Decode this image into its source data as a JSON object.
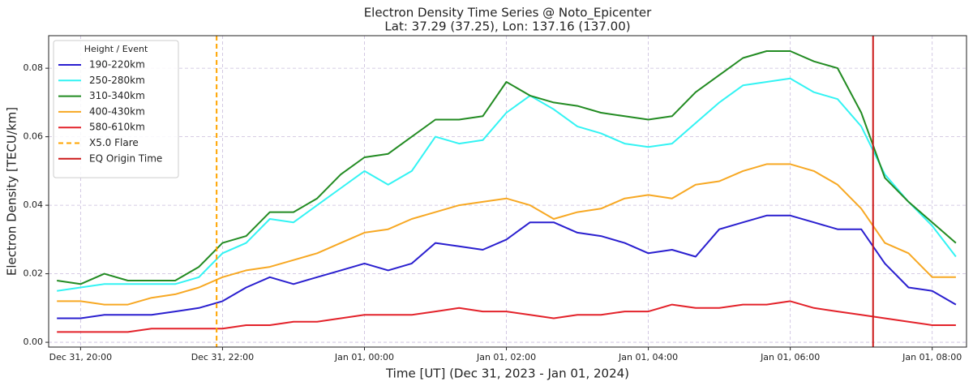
{
  "chart_data": {
    "type": "line",
    "title": "Electron Density Time Series @ Noto_Epicenter",
    "subtitle": "Lat: 37.29 (37.25), Lon: 137.16 (137.00)",
    "x_label": "Time [UT] (Dec 31, 2023 - Jan 01, 2024)",
    "y_label": "Electron Density [TECU/km]",
    "legend_title": "Height / Event",
    "legend_position": "upper left",
    "grid": true,
    "x": [
      "2023-12-31T19:40",
      "2023-12-31T20:00",
      "2023-12-31T20:20",
      "2023-12-31T20:40",
      "2023-12-31T21:00",
      "2023-12-31T21:20",
      "2023-12-31T21:40",
      "2023-12-31T22:00",
      "2023-12-31T22:20",
      "2023-12-31T22:40",
      "2023-12-31T23:00",
      "2023-12-31T23:20",
      "2023-12-31T23:40",
      "2024-01-01T00:00",
      "2024-01-01T00:20",
      "2024-01-01T00:40",
      "2024-01-01T01:00",
      "2024-01-01T01:20",
      "2024-01-01T01:40",
      "2024-01-01T02:00",
      "2024-01-01T02:20",
      "2024-01-01T02:40",
      "2024-01-01T03:00",
      "2024-01-01T03:20",
      "2024-01-01T03:40",
      "2024-01-01T04:00",
      "2024-01-01T04:20",
      "2024-01-01T04:40",
      "2024-01-01T05:00",
      "2024-01-01T05:20",
      "2024-01-01T05:40",
      "2024-01-01T06:00",
      "2024-01-01T06:20",
      "2024-01-01T06:40",
      "2024-01-01T07:00",
      "2024-01-01T07:20",
      "2024-01-01T07:40",
      "2024-01-01T08:00",
      "2024-01-01T08:20"
    ],
    "series": [
      {
        "name": "190-220km",
        "color": "#2a1fcf",
        "values": [
          0.007,
          0.007,
          0.008,
          0.008,
          0.008,
          0.009,
          0.01,
          0.012,
          0.016,
          0.019,
          0.017,
          0.019,
          0.021,
          0.023,
          0.021,
          0.023,
          0.029,
          0.028,
          0.027,
          0.03,
          0.035,
          0.035,
          0.032,
          0.031,
          0.029,
          0.026,
          0.027,
          0.025,
          0.033,
          0.035,
          0.037,
          0.037,
          0.035,
          0.033,
          0.033,
          0.023,
          0.016,
          0.015,
          0.011
        ]
      },
      {
        "name": "250-280km",
        "color": "#33f3f3",
        "values": [
          0.015,
          0.016,
          0.017,
          0.017,
          0.017,
          0.017,
          0.019,
          0.026,
          0.029,
          0.036,
          0.035,
          0.04,
          0.045,
          0.05,
          0.046,
          0.05,
          0.06,
          0.058,
          0.059,
          0.067,
          0.072,
          0.068,
          0.063,
          0.061,
          0.058,
          0.057,
          0.058,
          0.064,
          0.07,
          0.075,
          0.076,
          0.077,
          0.073,
          0.071,
          0.063,
          0.049,
          0.041,
          0.034,
          0.025
        ]
      },
      {
        "name": "310-340km",
        "color": "#228b22",
        "values": [
          0.018,
          0.017,
          0.02,
          0.018,
          0.018,
          0.018,
          0.022,
          0.029,
          0.031,
          0.038,
          0.038,
          0.042,
          0.049,
          0.054,
          0.055,
          0.06,
          0.065,
          0.065,
          0.066,
          0.076,
          0.072,
          0.07,
          0.069,
          0.067,
          0.066,
          0.065,
          0.066,
          0.073,
          0.078,
          0.083,
          0.085,
          0.085,
          0.082,
          0.08,
          0.067,
          0.048,
          0.041,
          0.035,
          0.029
        ]
      },
      {
        "name": "400-430km",
        "color": "#f7a823",
        "values": [
          0.012,
          0.012,
          0.011,
          0.011,
          0.013,
          0.014,
          0.016,
          0.019,
          0.021,
          0.022,
          0.024,
          0.026,
          0.029,
          0.032,
          0.033,
          0.036,
          0.038,
          0.04,
          0.041,
          0.042,
          0.04,
          0.036,
          0.038,
          0.039,
          0.042,
          0.043,
          0.042,
          0.046,
          0.047,
          0.05,
          0.052,
          0.052,
          0.05,
          0.046,
          0.039,
          0.029,
          0.026,
          0.019,
          0.019
        ]
      },
      {
        "name": "580-610km",
        "color": "#e3222a",
        "values": [
          0.003,
          0.003,
          0.003,
          0.003,
          0.004,
          0.004,
          0.004,
          0.004,
          0.005,
          0.005,
          0.006,
          0.006,
          0.007,
          0.008,
          0.008,
          0.008,
          0.009,
          0.01,
          0.009,
          0.009,
          0.008,
          0.007,
          0.008,
          0.008,
          0.009,
          0.009,
          0.011,
          0.01,
          0.01,
          0.011,
          0.011,
          0.012,
          0.01,
          0.009,
          0.008,
          0.007,
          0.006,
          0.005,
          0.005
        ]
      }
    ],
    "events": [
      {
        "name": "X5.0 Flare",
        "x": "2023-12-31T21:55",
        "color": "#ffa500",
        "style": "dashed"
      },
      {
        "name": "EQ Origin Time",
        "x": "2024-01-01T07:10",
        "color": "#cc1a1a",
        "style": "solid"
      }
    ],
    "xlim": [
      "2023-12-31T19:33",
      "2024-01-01T08:29"
    ],
    "xticks": [
      {
        "value": "2023-12-31T20:00",
        "label": "Dec 31, 20:00"
      },
      {
        "value": "2023-12-31T22:00",
        "label": "Dec 31, 22:00"
      },
      {
        "value": "2024-01-01T00:00",
        "label": "Jan 01, 00:00"
      },
      {
        "value": "2024-01-01T02:00",
        "label": "Jan 01, 02:00"
      },
      {
        "value": "2024-01-01T04:00",
        "label": "Jan 01, 04:00"
      },
      {
        "value": "2024-01-01T06:00",
        "label": "Jan 01, 06:00"
      },
      {
        "value": "2024-01-01T08:00",
        "label": "Jan 01, 08:00"
      }
    ],
    "ylim": [
      -0.0014,
      0.0895
    ],
    "yticks": [
      {
        "value": 0,
        "label": "0.00"
      },
      {
        "value": 0.02,
        "label": "0.02"
      },
      {
        "value": 0.04,
        "label": "0.04"
      },
      {
        "value": 0.06,
        "label": "0.06"
      },
      {
        "value": 0.08,
        "label": "0.08"
      }
    ]
  }
}
